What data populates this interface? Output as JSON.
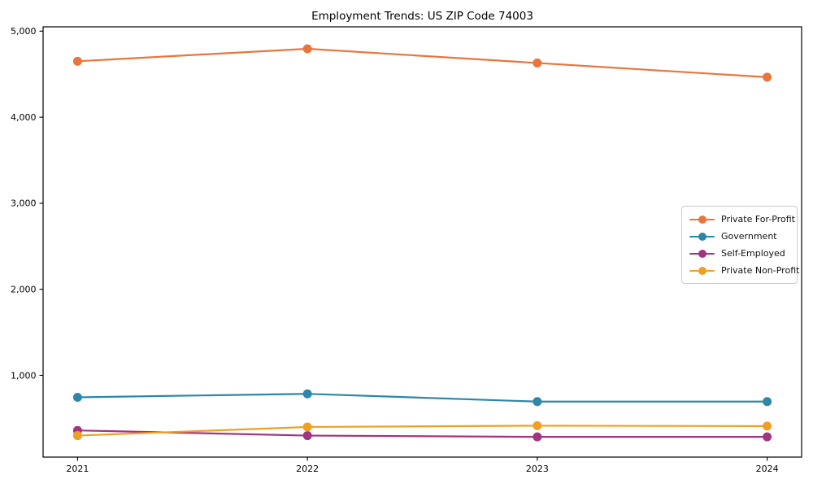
{
  "chart_data": {
    "type": "line",
    "title": "Employment Trends: US ZIP Code 74003",
    "xlabel": "",
    "ylabel": "",
    "x": [
      2021,
      2022,
      2023,
      2024
    ],
    "xtick_labels": [
      "2021",
      "2022",
      "2023",
      "2024"
    ],
    "ytick_values": [
      1000,
      2000,
      3000,
      4000,
      5000
    ],
    "ytick_labels": [
      "1,000",
      "2,000",
      "3,000",
      "4,000",
      "5,000"
    ],
    "xlim": [
      2020.85,
      2024.15
    ],
    "ylim": [
      50,
      5050
    ],
    "grid": false,
    "legend_position": "center-right",
    "frame": "full-box",
    "series": [
      {
        "name": "Private For-Profit",
        "color": "#E8763C",
        "values": [
          4650,
          4795,
          4630,
          4465
        ]
      },
      {
        "name": "Government",
        "color": "#2E87A8",
        "values": [
          745,
          785,
          695,
          695
        ]
      },
      {
        "name": "Self-Employed",
        "color": "#A23480",
        "values": [
          360,
          300,
          285,
          285
        ]
      },
      {
        "name": "Private Non-Profit",
        "color": "#EFA024",
        "values": [
          300,
          400,
          415,
          410
        ]
      }
    ]
  }
}
